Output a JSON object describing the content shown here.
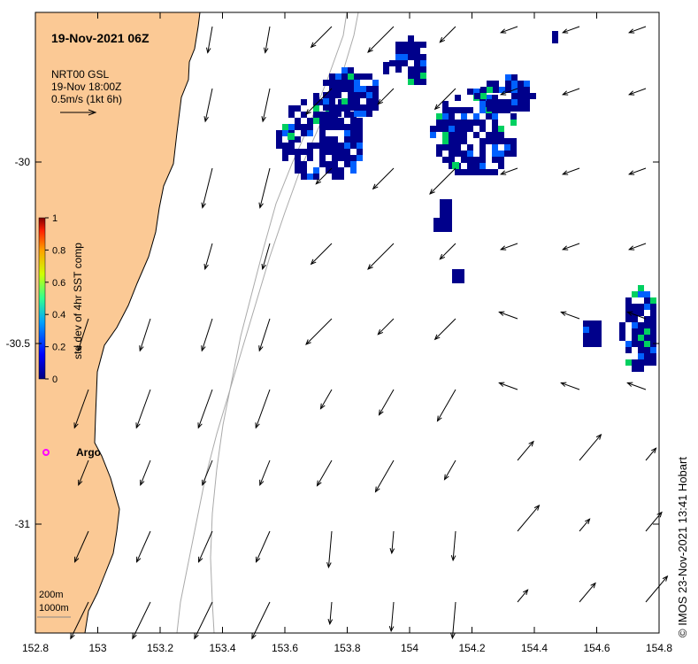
{
  "title": "19-Nov-2021 06Z",
  "info": {
    "line1": "NRT00 GSL",
    "line2": "19-Nov 18:00Z",
    "line3": "0.5m/s (1kt 6h)"
  },
  "colorbar": {
    "label": "std dev of 4hr SST comp",
    "ticks": [
      "1",
      "0.8",
      "0.6",
      "0.4",
      "0.2",
      "0"
    ]
  },
  "axes": {
    "x_ticks": [
      "152.8",
      "153",
      "153.2",
      "153.4",
      "153.6",
      "153.8",
      "154",
      "154.2",
      "154.4",
      "154.6",
      "154.8"
    ],
    "y_ticks": [
      "-30",
      "-30.5",
      "-31"
    ]
  },
  "argo_label": "Argo",
  "depth_legend": [
    "200m",
    "1000m"
  ],
  "credit": "© IMOS 23-Nov-2021 13:41 Hobart",
  "colors": {
    "land": "#fbc995",
    "argo_marker": "#ff00ff",
    "sst_low": "#00008b",
    "sst_mid": "#0060ff",
    "sst_high": "#00d060"
  }
}
